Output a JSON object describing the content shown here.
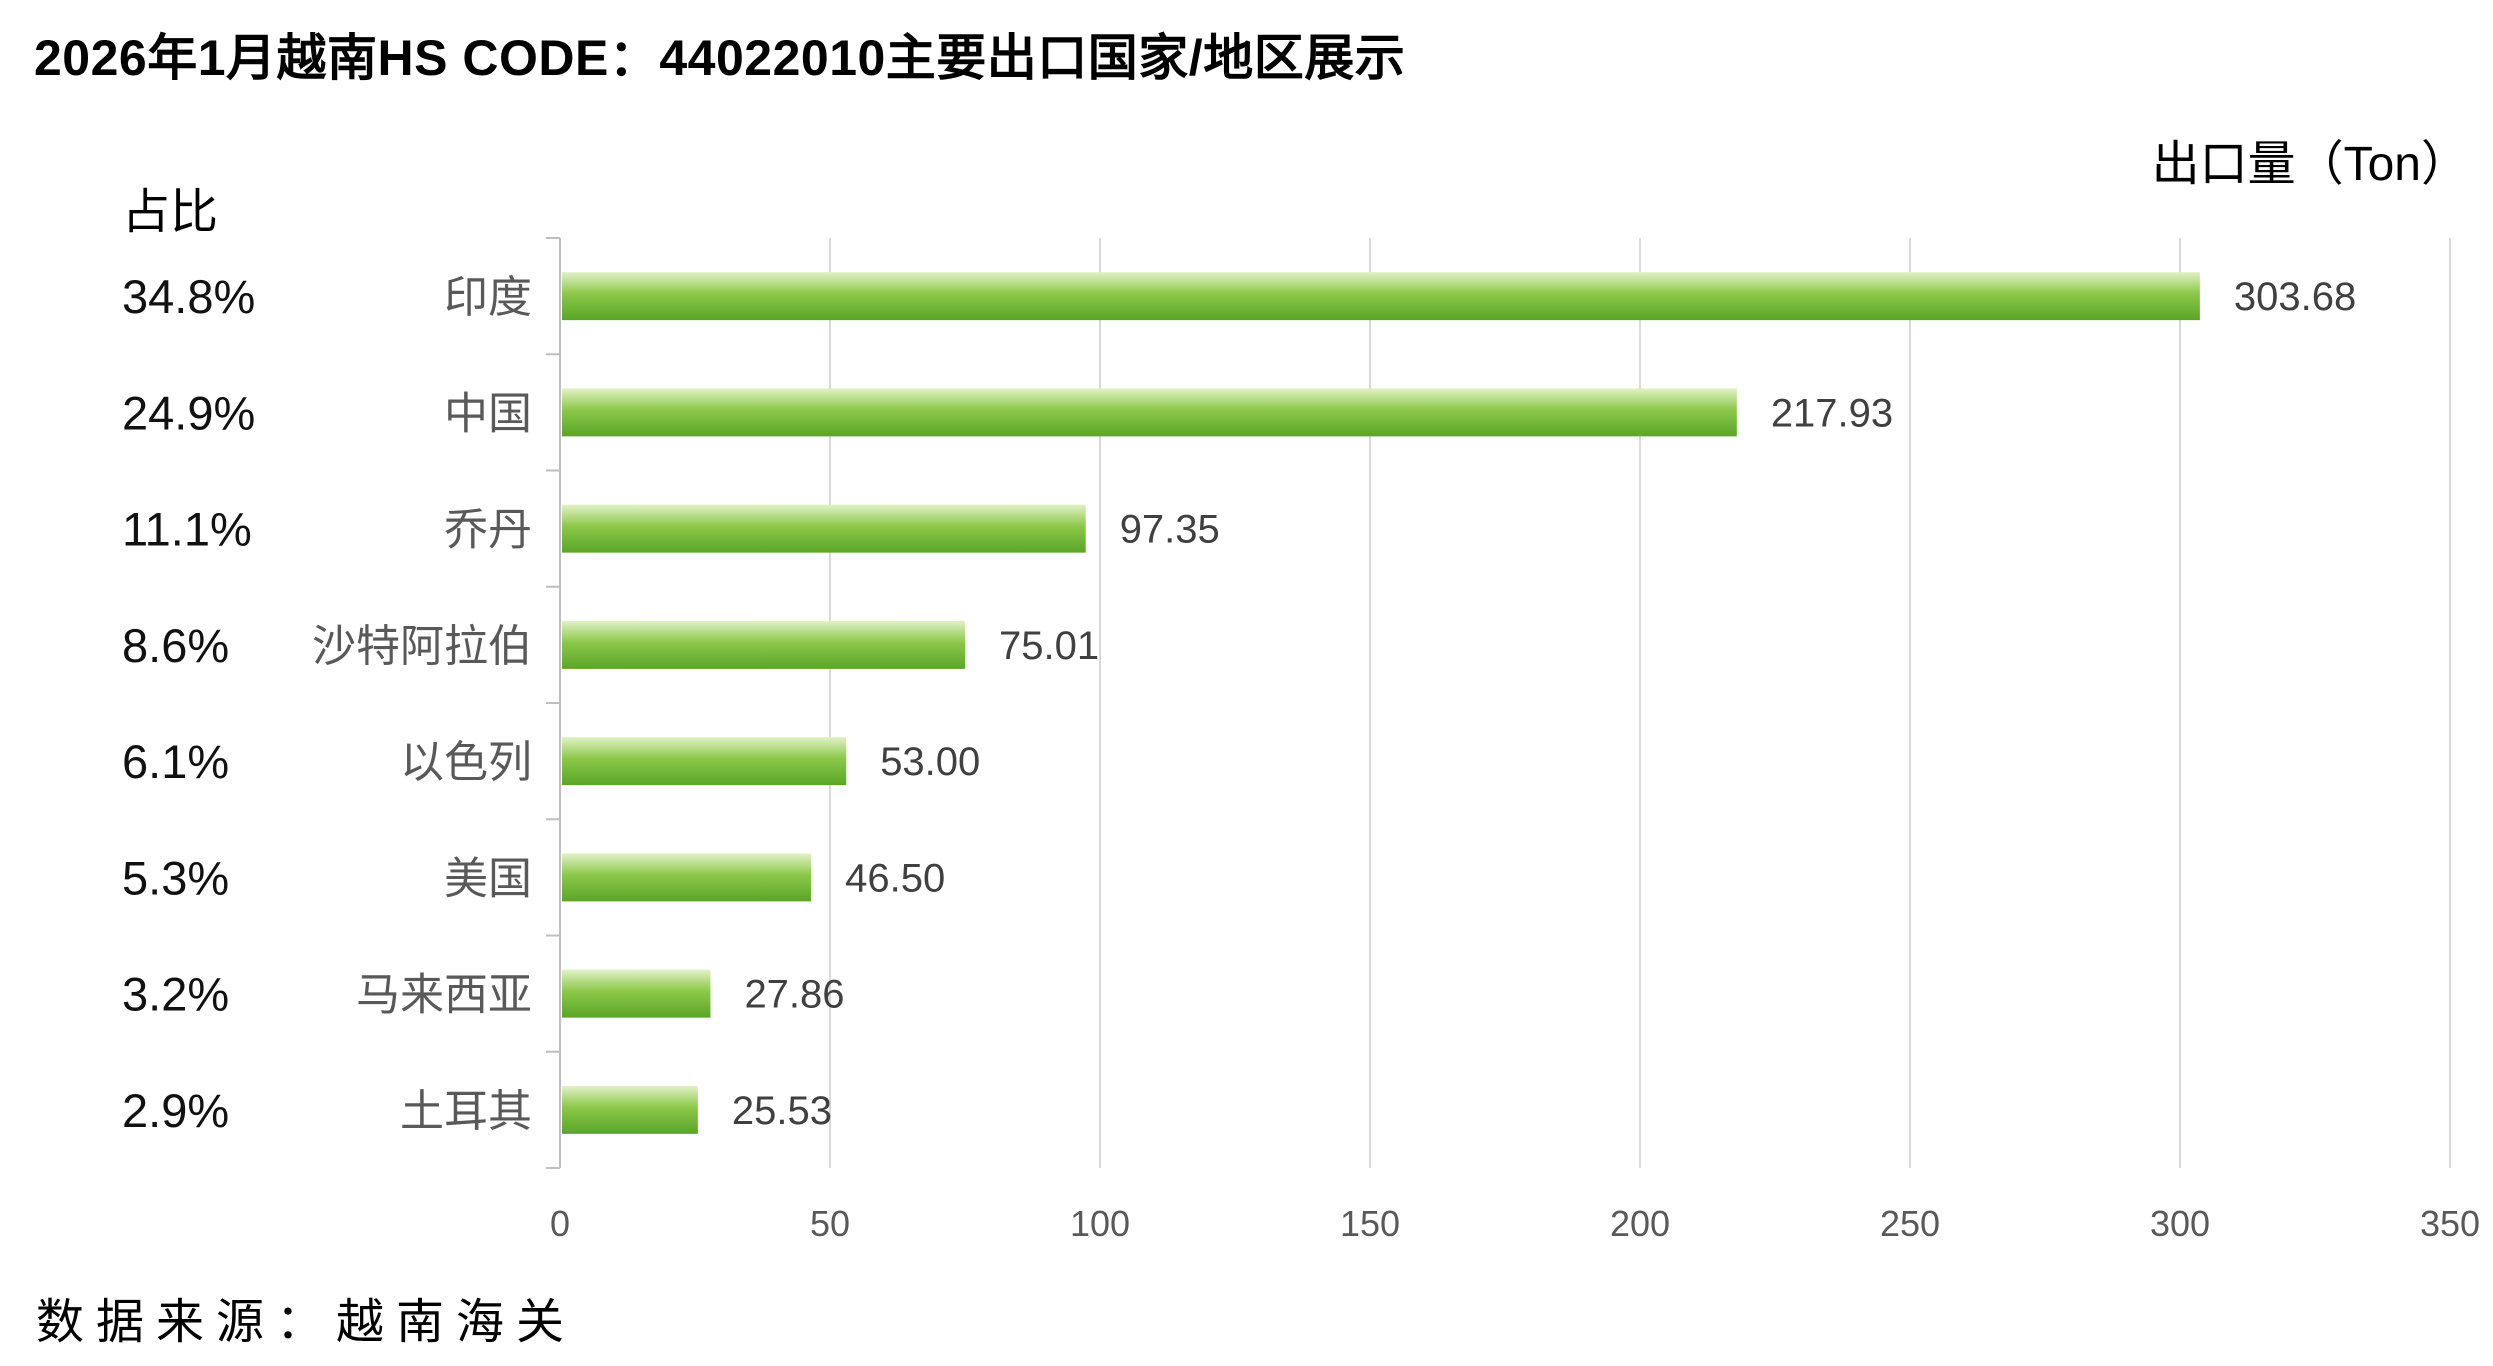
{
  "title": "2026年1月越南HS CODE：44022010主要出口国家/地区展示",
  "source": "数据来源：越南海关",
  "chart_data": {
    "type": "bar",
    "orientation": "horizontal",
    "title": "2026年1月越南HS CODE：44022010主要出口国家/地区展示",
    "xlabel": "出口量（Ton）",
    "share_label": "占比",
    "categories": [
      "印度",
      "中国",
      "乔丹",
      "沙特阿拉伯",
      "以色列",
      "美国",
      "马来西亚",
      "土耳其"
    ],
    "values": [
      303.68,
      217.93,
      97.35,
      75.01,
      53.0,
      46.5,
      27.86,
      25.53
    ],
    "value_labels": [
      "303.68",
      "217.93",
      "97.35",
      "75.01",
      "53.00",
      "46.50",
      "27.86",
      "25.53"
    ],
    "shares": [
      "34.8%",
      "24.9%",
      "11.1%",
      "8.6%",
      "6.1%",
      "5.3%",
      "3.2%",
      "2.9%"
    ],
    "xlim": [
      0,
      350
    ],
    "xticks": [
      0,
      50,
      100,
      150,
      200,
      250,
      300,
      350
    ],
    "grid": true,
    "bar_colors": {
      "top": "#e2f1c8",
      "mid": "#8cc84a",
      "bottom": "#5aa528"
    }
  }
}
